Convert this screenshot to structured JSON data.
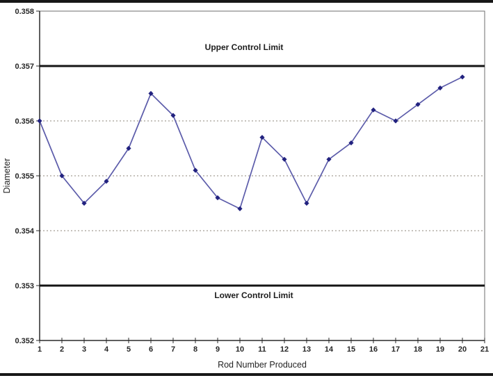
{
  "chart_data": {
    "type": "line",
    "title": "",
    "xlabel": "Rod Number Produced",
    "ylabel": "Diameter",
    "x": [
      1,
      2,
      3,
      4,
      5,
      6,
      7,
      8,
      9,
      10,
      11,
      12,
      13,
      14,
      15,
      16,
      17,
      18,
      19,
      20
    ],
    "values": [
      0.356,
      0.355,
      0.3545,
      0.3549,
      0.3555,
      0.3565,
      0.3561,
      0.3551,
      0.3546,
      0.3544,
      0.3557,
      0.3553,
      0.3545,
      0.3553,
      0.3556,
      0.3562,
      0.356,
      0.3563,
      0.3566,
      0.3568
    ],
    "upper_control_limit": {
      "value": 0.357,
      "label": "Upper Control Limit"
    },
    "lower_control_limit": {
      "value": 0.353,
      "label": "Lower Control Limit"
    },
    "xlim": [
      1,
      21
    ],
    "ylim": [
      0.352,
      0.358
    ],
    "x_ticks": [
      1,
      2,
      3,
      4,
      5,
      6,
      7,
      8,
      9,
      10,
      11,
      12,
      13,
      14,
      15,
      16,
      17,
      18,
      19,
      20,
      21
    ],
    "y_ticks": [
      {
        "value": 0.358,
        "label": "0.358"
      },
      {
        "value": 0.357,
        "label": "0.357"
      },
      {
        "value": 0.356,
        "label": "0.356"
      },
      {
        "value": 0.355,
        "label": "0.355"
      },
      {
        "value": 0.354,
        "label": "0.354"
      },
      {
        "value": 0.353,
        "label": "0.353"
      },
      {
        "value": 0.352,
        "label": "0.352"
      }
    ],
    "gridlines": [
      0.356,
      0.355,
      0.354
    ],
    "grid": "horizontal dashed",
    "legend": "none",
    "marker_shape": "diamond",
    "colors": {
      "series_line": "#5c5caa",
      "marker": "#22227f",
      "control_limit_line": "#141414",
      "grid_line": "#8c8478",
      "axis_line": "#2a2a2a",
      "plot_border": "#6e6e6e",
      "text": "#262626",
      "page_rule": "#171717"
    }
  }
}
